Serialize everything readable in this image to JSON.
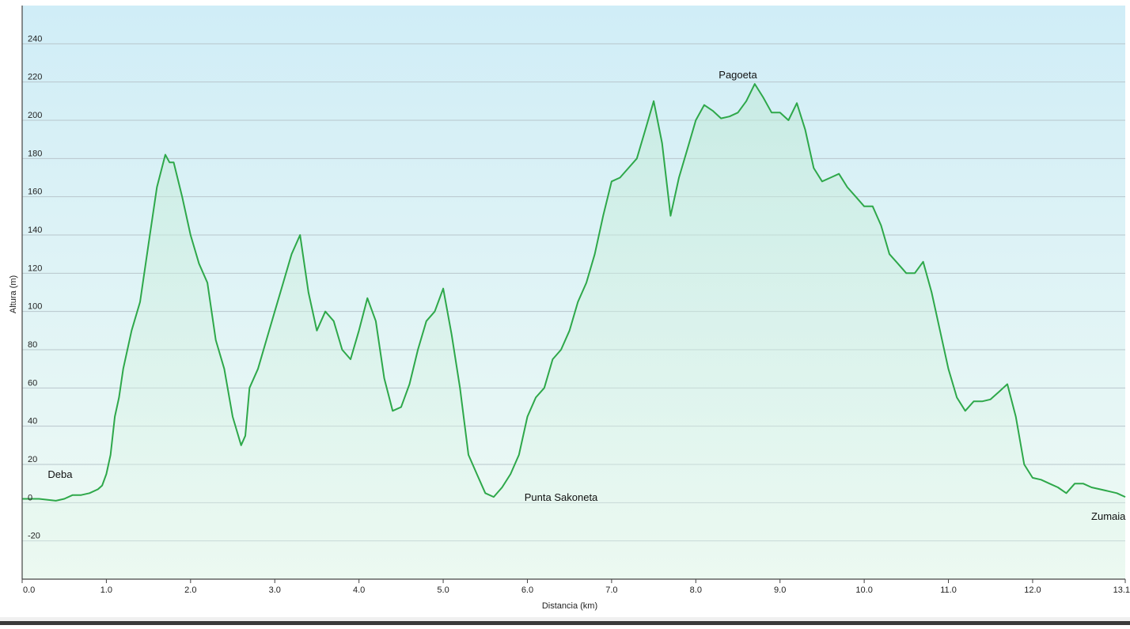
{
  "chart_data": {
    "type": "area",
    "title": "",
    "xlabel": "Distancia  (km)",
    "ylabel": "Altura (m)",
    "xlim": [
      0,
      13.1
    ],
    "ylim": [
      -40,
      260
    ],
    "x_ticks": [
      {
        "value": 0,
        "label": "0.0"
      },
      {
        "value": 1,
        "label": "1.0"
      },
      {
        "value": 2,
        "label": "2.0"
      },
      {
        "value": 3,
        "label": "3.0"
      },
      {
        "value": 4,
        "label": "4.0"
      },
      {
        "value": 5,
        "label": "5.0"
      },
      {
        "value": 6,
        "label": "6.0"
      },
      {
        "value": 7,
        "label": "7.0"
      },
      {
        "value": 8,
        "label": "8.0"
      },
      {
        "value": 9,
        "label": "9.0"
      },
      {
        "value": 10,
        "label": "10.0"
      },
      {
        "value": 11,
        "label": "11.0"
      },
      {
        "value": 12,
        "label": "12.0"
      },
      {
        "value": 13.1,
        "label": "13.1"
      }
    ],
    "y_ticks": [
      {
        "value": -20,
        "label": "-20"
      },
      {
        "value": 0,
        "label": "0"
      },
      {
        "value": 20,
        "label": "20"
      },
      {
        "value": 40,
        "label": "40"
      },
      {
        "value": 60,
        "label": "60"
      },
      {
        "value": 80,
        "label": "80"
      },
      {
        "value": 100,
        "label": "100"
      },
      {
        "value": 120,
        "label": "120"
      },
      {
        "value": 140,
        "label": "140"
      },
      {
        "value": 160,
        "label": "160"
      },
      {
        "value": 180,
        "label": "180"
      },
      {
        "value": 200,
        "label": "200"
      },
      {
        "value": 220,
        "label": "220"
      },
      {
        "value": 240,
        "label": "240"
      }
    ],
    "grid": true,
    "colors": {
      "line": "#2ea84a",
      "bg_top": "#d0edf7",
      "bg_bottom": "#effaf4",
      "grid": "#b8c6cc",
      "axis": "#444444"
    },
    "series": [
      {
        "x": [
          0,
          0.2,
          0.4,
          0.5,
          0.6,
          0.7,
          0.8,
          0.9,
          0.95,
          1.0,
          1.05,
          1.1,
          1.15,
          1.2,
          1.3,
          1.4,
          1.5,
          1.6,
          1.7,
          1.75,
          1.8,
          1.9,
          2.0,
          2.1,
          2.2,
          2.25,
          2.3,
          2.4,
          2.5,
          2.6,
          2.65,
          2.7,
          2.8,
          2.9,
          3.0,
          3.1,
          3.2,
          3.3,
          3.4,
          3.5,
          3.6,
          3.7,
          3.8,
          3.9,
          4.0,
          4.1,
          4.2,
          4.3,
          4.4,
          4.5,
          4.6,
          4.7,
          4.8,
          4.9,
          5.0,
          5.1,
          5.2,
          5.3,
          5.4,
          5.5,
          5.6,
          5.7,
          5.8,
          5.9,
          6.0,
          6.1,
          6.2,
          6.3,
          6.4,
          6.5,
          6.6,
          6.7,
          6.8,
          6.9,
          7.0,
          7.1,
          7.2,
          7.3,
          7.4,
          7.5,
          7.6,
          7.7,
          7.75,
          7.8,
          7.9,
          8.0,
          8.1,
          8.2,
          8.3,
          8.4,
          8.5,
          8.6,
          8.7,
          8.8,
          8.9,
          9.0,
          9.1,
          9.2,
          9.3,
          9.4,
          9.5,
          9.6,
          9.7,
          9.8,
          9.9,
          10.0,
          10.1,
          10.2,
          10.3,
          10.4,
          10.5,
          10.6,
          10.7,
          10.8,
          10.9,
          11.0,
          11.1,
          11.2,
          11.3,
          11.4,
          11.5,
          11.6,
          11.7,
          11.8,
          11.9,
          12.0,
          12.1,
          12.2,
          12.3,
          12.4,
          12.5,
          12.6,
          12.7,
          12.8,
          12.9,
          13.0,
          13.1
        ],
        "y": [
          2,
          2,
          1,
          2,
          4,
          4,
          5,
          7,
          9,
          15,
          25,
          45,
          55,
          70,
          90,
          105,
          135,
          165,
          182,
          178,
          178,
          160,
          140,
          125,
          115,
          100,
          85,
          70,
          45,
          30,
          35,
          60,
          70,
          85,
          100,
          115,
          130,
          140,
          110,
          90,
          100,
          95,
          80,
          75,
          90,
          107,
          95,
          65,
          48,
          50,
          62,
          80,
          95,
          100,
          112,
          88,
          60,
          25,
          15,
          5,
          3,
          8,
          15,
          25,
          45,
          55,
          60,
          75,
          80,
          90,
          105,
          115,
          130,
          150,
          168,
          170,
          175,
          180,
          195,
          210,
          188,
          150,
          160,
          170,
          185,
          200,
          208,
          205,
          201,
          202,
          204,
          210,
          219,
          212,
          204,
          204,
          200,
          209,
          195,
          175,
          168,
          170,
          172,
          165,
          160,
          155,
          155,
          145,
          130,
          125,
          120,
          120,
          126,
          110,
          90,
          70,
          55,
          48,
          53,
          53,
          54,
          58,
          62,
          45,
          20,
          13,
          12,
          10,
          8,
          5,
          10,
          10,
          8,
          7,
          6,
          5,
          3
        ]
      }
    ],
    "annotations": [
      {
        "label": "Deba",
        "x": 0.45,
        "y": 13
      },
      {
        "label": "Punta Sakoneta",
        "x": 6.4,
        "y": 1
      },
      {
        "label": "Pagoeta",
        "x": 8.5,
        "y": 222
      },
      {
        "label": "Zumaia",
        "x": 12.9,
        "y": -9
      }
    ]
  }
}
